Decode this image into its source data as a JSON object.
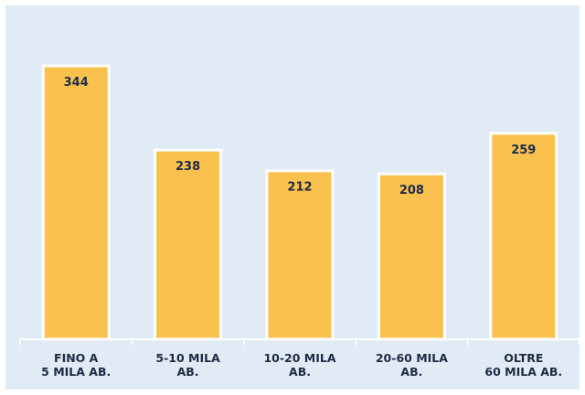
{
  "colors": {
    "background": "#e1ebf6",
    "bar_fill": "#f9c24f",
    "bar_stroke": "#ffffff",
    "text": "#1f2a44",
    "axis": "#ffffff"
  },
  "chart_data": {
    "type": "bar",
    "categories": [
      [
        "FINO A",
        "5 MILA AB."
      ],
      [
        "5-10 MILA",
        "AB."
      ],
      [
        "10-20 MILA",
        "AB."
      ],
      [
        "20-60 MILA",
        "AB."
      ],
      [
        "OLTRE",
        "60 MILA AB."
      ]
    ],
    "values": [
      344,
      238,
      212,
      208,
      259
    ],
    "data_labels": [
      "344",
      "238",
      "212",
      "208",
      "259"
    ],
    "ylim": [
      0,
      350
    ],
    "grid": false,
    "legend": "none",
    "title": "",
    "xlabel": "",
    "ylabel": ""
  }
}
